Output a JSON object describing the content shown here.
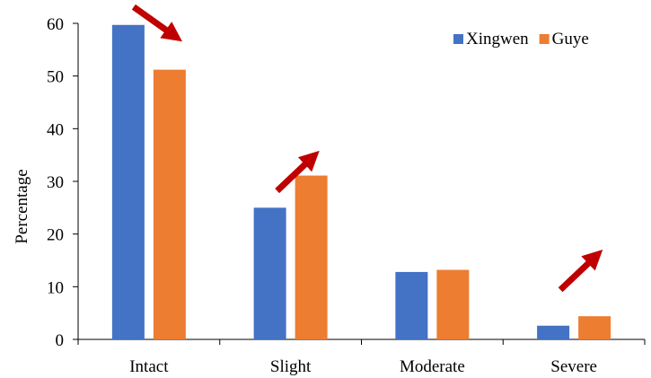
{
  "chart_data": {
    "type": "bar",
    "title": "",
    "xlabel": "",
    "ylabel": "Percentage",
    "ylim": [
      0,
      60
    ],
    "yticks": [
      0,
      10,
      20,
      30,
      40,
      50,
      60
    ],
    "categories": [
      "Intact",
      "Slight",
      "Moderate",
      "Severe"
    ],
    "series": [
      {
        "name": "Xingwen",
        "color": "#4472c4",
        "values": [
          59.7,
          25.0,
          12.8,
          2.6
        ]
      },
      {
        "name": "Guye",
        "color": "#ed7d31",
        "values": [
          51.2,
          31.1,
          13.2,
          4.4
        ]
      }
    ],
    "legend": {
      "position": "top-right"
    },
    "grid": false,
    "annotations": [
      {
        "type": "arrow",
        "icon": "arrow-down-right-icon",
        "color": "#c00000",
        "category": "Intact",
        "direction": "down"
      },
      {
        "type": "arrow",
        "icon": "arrow-up-right-icon",
        "color": "#c00000",
        "category": "Slight",
        "direction": "up"
      },
      {
        "type": "arrow",
        "icon": "arrow-up-right-icon",
        "color": "#c00000",
        "category": "Severe",
        "direction": "up"
      }
    ]
  }
}
